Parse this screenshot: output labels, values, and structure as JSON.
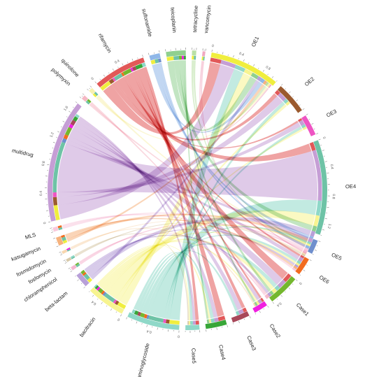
{
  "chart_data": {
    "type": "chord",
    "sectors": [
      {
        "name": "OE1",
        "group": "sample",
        "total": 1.0,
        "color": "#f0ee3e"
      },
      {
        "name": "OE2",
        "group": "sample",
        "total": 0.45,
        "color": "#9b5a2e"
      },
      {
        "name": "OE3",
        "group": "sample",
        "total": 0.3,
        "color": "#ee55c3"
      },
      {
        "name": "OE4",
        "group": "sample",
        "total": 1.35,
        "color": "#6ec3a6"
      },
      {
        "name": "OE5",
        "group": "sample",
        "total": 0.2,
        "color": "#6f8fcd"
      },
      {
        "name": "OE6",
        "group": "sample",
        "total": 0.25,
        "color": "#f26b1f"
      },
      {
        "name": "Case1",
        "group": "sample",
        "total": 0.45,
        "color": "#74b72e"
      },
      {
        "name": "Case2",
        "group": "sample",
        "total": 0.2,
        "color": "#f020e0"
      },
      {
        "name": "Case3",
        "group": "sample",
        "total": 0.25,
        "color": "#a8485a"
      },
      {
        "name": "Case4",
        "group": "sample",
        "total": 0.3,
        "color": "#38a638"
      },
      {
        "name": "Case5",
        "group": "sample",
        "total": 0.2,
        "color": "#8fd8c8"
      },
      {
        "name": "aminoglycoside",
        "group": "antibiotic",
        "total": 0.75,
        "color": "#8fd8c8"
      },
      {
        "name": "bacitracin",
        "group": "antibiotic",
        "total": 0.55,
        "color": "#f7f490"
      },
      {
        "name": "beta-lactam",
        "group": "antibiotic",
        "total": 0.2,
        "color": "#b8a0d8"
      },
      {
        "name": "chloramphenicol",
        "group": "antibiotic",
        "total": 0.05,
        "color": "#f5b6cf"
      },
      {
        "name": "fosfomycin",
        "group": "antibiotic",
        "total": 0.04,
        "color": "#d7c9a8"
      },
      {
        "name": "fosmidomycin",
        "group": "antibiotic",
        "total": 0.04,
        "color": "#f7d7b0"
      },
      {
        "name": "kasugamycin",
        "group": "antibiotic",
        "total": 0.12,
        "color": "#f6b27d"
      },
      {
        "name": "MLS",
        "group": "antibiotic",
        "total": 0.06,
        "color": "#f8c8dc"
      },
      {
        "name": "multidrug",
        "group": "antibiotic",
        "total": 1.75,
        "color": "#c59ed5"
      },
      {
        "name": "polymyxin",
        "group": "antibiotic",
        "total": 0.06,
        "color": "#f5b8c4"
      },
      {
        "name": "quinolone",
        "group": "antibiotic",
        "total": 0.06,
        "color": "#f7f0b0"
      },
      {
        "name": "rifamycin",
        "group": "antibiotic",
        "total": 0.75,
        "color": "#e25858"
      },
      {
        "name": "sulfonamide",
        "group": "antibiotic",
        "total": 0.15,
        "color": "#8fb7e8"
      },
      {
        "name": "teicoplanin",
        "group": "antibiotic",
        "total": 0.28,
        "color": "#8fd08f"
      },
      {
        "name": "tetracycline",
        "group": "antibiotic",
        "total": 0.06,
        "color": "#b9e0a5"
      },
      {
        "name": "vancomycin",
        "group": "antibiotic",
        "total": 0.04,
        "color": "#f0a8c0"
      }
    ],
    "flows": [
      {
        "source": "rifamycin",
        "target": "OE1",
        "value": 0.16
      },
      {
        "source": "rifamycin",
        "target": "OE2",
        "value": 0.06
      },
      {
        "source": "rifamycin",
        "target": "OE3",
        "value": 0.03
      },
      {
        "source": "rifamycin",
        "target": "OE4",
        "value": 0.12
      },
      {
        "source": "rifamycin",
        "target": "OE6",
        "value": 0.03
      },
      {
        "source": "rifamycin",
        "target": "Case1",
        "value": 0.12
      },
      {
        "source": "rifamycin",
        "target": "Case2",
        "value": 0.03
      },
      {
        "source": "rifamycin",
        "target": "Case3",
        "value": 0.05
      },
      {
        "source": "rifamycin",
        "target": "Case4",
        "value": 0.1
      },
      {
        "source": "rifamycin",
        "target": "Case5",
        "value": 0.05
      },
      {
        "source": "multidrug",
        "target": "OE1",
        "value": 0.22
      },
      {
        "source": "multidrug",
        "target": "OE2",
        "value": 0.12
      },
      {
        "source": "multidrug",
        "target": "OE3",
        "value": 0.07
      },
      {
        "source": "multidrug",
        "target": "OE4",
        "value": 0.75
      },
      {
        "source": "multidrug",
        "target": "OE5",
        "value": 0.06
      },
      {
        "source": "multidrug",
        "target": "OE6",
        "value": 0.06
      },
      {
        "source": "multidrug",
        "target": "Case1",
        "value": 0.12
      },
      {
        "source": "multidrug",
        "target": "Case2",
        "value": 0.05
      },
      {
        "source": "multidrug",
        "target": "Case3",
        "value": 0.07
      },
      {
        "source": "multidrug",
        "target": "Case4",
        "value": 0.06
      },
      {
        "source": "multidrug",
        "target": "Case5",
        "value": 0.04
      },
      {
        "source": "aminoglycoside",
        "target": "OE1",
        "value": 0.15
      },
      {
        "source": "aminoglycoside",
        "target": "OE2",
        "value": 0.05
      },
      {
        "source": "aminoglycoside",
        "target": "OE3",
        "value": 0.04
      },
      {
        "source": "aminoglycoside",
        "target": "OE4",
        "value": 0.22
      },
      {
        "source": "aminoglycoside",
        "target": "OE5",
        "value": 0.03
      },
      {
        "source": "aminoglycoside",
        "target": "OE6",
        "value": 0.04
      },
      {
        "source": "aminoglycoside",
        "target": "Case1",
        "value": 0.06
      },
      {
        "source": "aminoglycoside",
        "target": "Case3",
        "value": 0.04
      },
      {
        "source": "aminoglycoside",
        "target": "Case4",
        "value": 0.05
      },
      {
        "source": "aminoglycoside",
        "target": "Case5",
        "value": 0.04
      },
      {
        "source": "bacitracin",
        "target": "OE1",
        "value": 0.12
      },
      {
        "source": "bacitracin",
        "target": "OE2",
        "value": 0.04
      },
      {
        "source": "bacitracin",
        "target": "OE3",
        "value": 0.03
      },
      {
        "source": "bacitracin",
        "target": "OE4",
        "value": 0.16
      },
      {
        "source": "bacitracin",
        "target": "OE5",
        "value": 0.03
      },
      {
        "source": "bacitracin",
        "target": "OE6",
        "value": 0.03
      },
      {
        "source": "bacitracin",
        "target": "Case1",
        "value": 0.06
      },
      {
        "source": "bacitracin",
        "target": "Case2",
        "value": 0.03
      },
      {
        "source": "bacitracin",
        "target": "Case4",
        "value": 0.03
      },
      {
        "source": "bacitracin",
        "target": "Case5",
        "value": 0.02
      },
      {
        "source": "teicoplanin",
        "target": "OE1",
        "value": 0.1
      },
      {
        "source": "teicoplanin",
        "target": "OE4",
        "value": 0.08
      },
      {
        "source": "teicoplanin",
        "target": "Case1",
        "value": 0.04
      },
      {
        "source": "teicoplanin",
        "target": "Case2",
        "value": 0.03
      },
      {
        "source": "teicoplanin",
        "target": "Case4",
        "value": 0.03
      },
      {
        "source": "beta-lactam",
        "target": "OE1",
        "value": 0.05
      },
      {
        "source": "beta-lactam",
        "target": "OE4",
        "value": 0.08
      },
      {
        "source": "beta-lactam",
        "target": "OE6",
        "value": 0.03
      },
      {
        "source": "beta-lactam",
        "target": "Case1",
        "value": 0.04
      },
      {
        "source": "sulfonamide",
        "target": "OE1",
        "value": 0.06
      },
      {
        "source": "sulfonamide",
        "target": "OE4",
        "value": 0.05
      },
      {
        "source": "sulfonamide",
        "target": "OE5",
        "value": 0.04
      },
      {
        "source": "kasugamycin",
        "target": "OE1",
        "value": 0.04
      },
      {
        "source": "kasugamycin",
        "target": "OE4",
        "value": 0.05
      },
      {
        "source": "kasugamycin",
        "target": "OE6",
        "value": 0.03
      },
      {
        "source": "tetracycline",
        "target": "OE1",
        "value": 0.03
      },
      {
        "source": "tetracycline",
        "target": "OE4",
        "value": 0.03
      },
      {
        "source": "quinolone",
        "target": "OE1",
        "value": 0.03
      },
      {
        "source": "quinolone",
        "target": "OE4",
        "value": 0.03
      },
      {
        "source": "polymyxin",
        "target": "OE4",
        "value": 0.03
      },
      {
        "source": "polymyxin",
        "target": "Case1",
        "value": 0.03
      },
      {
        "source": "MLS",
        "target": "OE4",
        "value": 0.03
      },
      {
        "source": "MLS",
        "target": "OE6",
        "value": 0.03
      },
      {
        "source": "chloramphenicol",
        "target": "OE4",
        "value": 0.03
      },
      {
        "source": "chloramphenicol",
        "target": "Case1",
        "value": 0.02
      },
      {
        "source": "vancomycin",
        "target": "OE1",
        "value": 0.02
      },
      {
        "source": "vancomycin",
        "target": "OE4",
        "value": 0.02
      },
      {
        "source": "fosmidomycin",
        "target": "OE4",
        "value": 0.02
      },
      {
        "source": "fosmidomycin",
        "target": "Case2",
        "value": 0.02
      },
      {
        "source": "fosfomycin",
        "target": "OE4",
        "value": 0.02
      },
      {
        "source": "fosfomycin",
        "target": "Case5",
        "value": 0.02
      }
    ],
    "tick_labels": {
      "OE1": [
        "0",
        "0.4",
        "0.8"
      ],
      "OE4": [
        "0",
        "0.4",
        "0.8",
        "1.2"
      ],
      "Case1": [
        "0",
        "0.4"
      ],
      "multidrug": [
        "0",
        "0.4",
        "0.8",
        "1.2",
        "1.6"
      ],
      "aminoglycoside": [
        "0",
        "0.4"
      ],
      "bacitracin": [
        "0",
        "0.4"
      ],
      "rifamycin": [
        "0",
        "0.4"
      ]
    },
    "grid": false,
    "legend": "none"
  }
}
